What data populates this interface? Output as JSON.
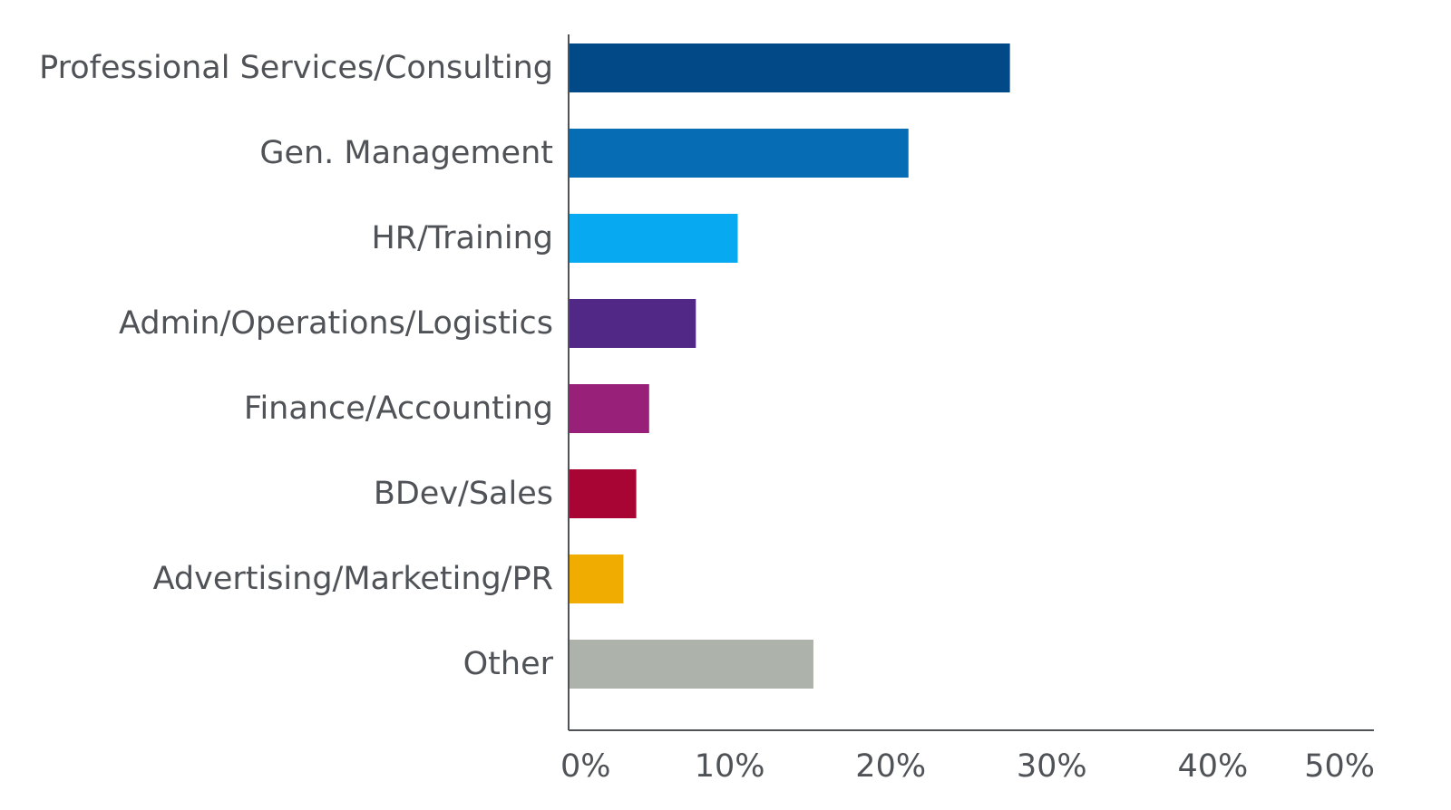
{
  "chart_data": {
    "type": "bar",
    "orientation": "horizontal",
    "categories": [
      "Professional Services/Consulting",
      "Gen. Management",
      "HR/Training",
      "Admin/Operations/Logistics",
      "Finance/Accounting",
      "BDev/Sales",
      "Advertising/Marketing/PR",
      "Other"
    ],
    "values": [
      27.4,
      21.1,
      10.5,
      7.9,
      5.0,
      4.2,
      3.4,
      15.2
    ],
    "colors": [
      "#014987",
      "#066db4",
      "#07a9f1",
      "#522887",
      "#982078",
      "#a80535",
      "#f0ac00",
      "#adb2aa"
    ],
    "x_ticks": [
      "0%",
      "10%",
      "20%",
      "30%",
      "40%",
      "50%"
    ],
    "tick_values": [
      0,
      10,
      20,
      30,
      40,
      50
    ],
    "xlim": [
      0,
      50
    ],
    "unit": "%",
    "title": "",
    "xlabel": "",
    "ylabel": "",
    "grid": false,
    "legend": "none",
    "axis_color": "#4f5256",
    "label_color": "#4f5256"
  }
}
